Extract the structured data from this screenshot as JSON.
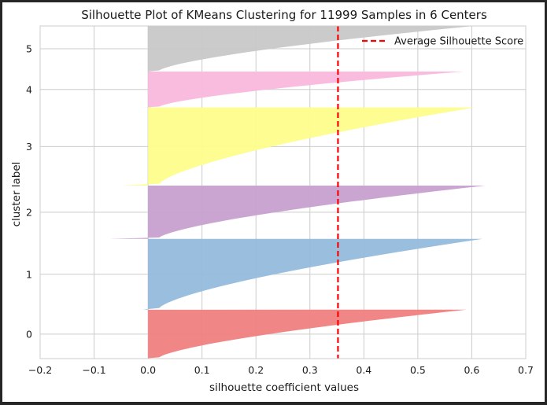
{
  "chart_data": {
    "type": "area",
    "title": "Silhouette Plot of KMeans Clustering for 11999 Samples in 6 Centers",
    "xlabel": "silhouette coefficient values",
    "ylabel": "cluster label",
    "xlim": [
      -0.2,
      0.7
    ],
    "x_ticks": [
      "−0.2",
      "−0.1",
      "0.0",
      "0.1",
      "0.2",
      "0.3",
      "0.4",
      "0.5",
      "0.6",
      "0.7"
    ],
    "grid": true,
    "legend_position": "top-right",
    "average_silhouette_score": 0.352,
    "average_label": "Average Silhouette Score",
    "clusters": [
      {
        "label": "0",
        "color": "#f08080",
        "band_fraction": [
          0.0,
          0.147
        ],
        "max_value": 0.59,
        "min_value": -0.01
      },
      {
        "label": "1",
        "color": "#94bbdc",
        "band_fraction": [
          0.147,
          0.36
        ],
        "max_value": 0.62,
        "min_value": -0.01
      },
      {
        "label": "2",
        "color": "#c7a0cf",
        "band_fraction": [
          0.36,
          0.52
        ],
        "max_value": 0.625,
        "min_value": -0.072
      },
      {
        "label": "3",
        "color": "#fdfd8c",
        "band_fraction": [
          0.52,
          0.755
        ],
        "max_value": 0.605,
        "min_value": -0.05
      },
      {
        "label": "4",
        "color": "#f9b8dd",
        "band_fraction": [
          0.755,
          0.863
        ],
        "max_value": 0.585,
        "min_value": -0.01
      },
      {
        "label": "5",
        "color": "#c8c8c8",
        "band_fraction": [
          0.863,
          1.0
        ],
        "max_value": 0.605,
        "min_value": 0.0
      }
    ],
    "colors": {
      "grid": "#cccccc",
      "axis_frame": "#cccccc",
      "average_line": "#ff0000"
    }
  }
}
